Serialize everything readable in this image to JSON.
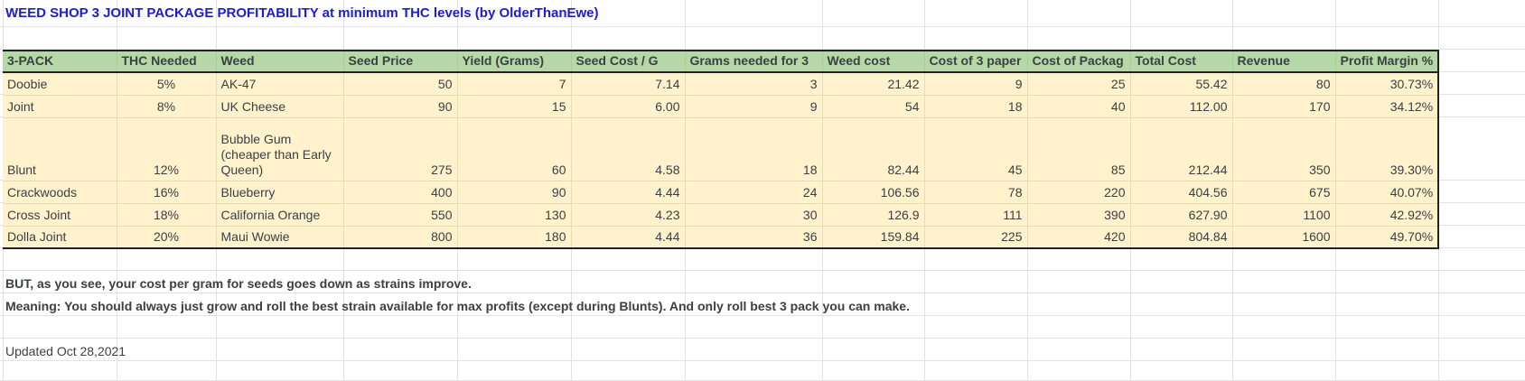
{
  "title": "WEED SHOP 3 JOINT PACKAGE PROFITABILITY at minimum THC levels  (by OlderThanEwe)",
  "colors": {
    "title": "#1c1cd4",
    "header_fill": "#b6d7a8",
    "row_fill": "#fff2cc"
  },
  "table": {
    "headers": [
      "3-PACK",
      "THC Needed",
      "Weed",
      "Seed Price",
      "Yield (Grams)",
      "Seed Cost / G",
      "Grams needed for 3",
      "Weed cost",
      "Cost of 3 paper",
      "Cost of Packag",
      "Total Cost",
      "Revenue",
      "Profit Margin %"
    ],
    "rows": [
      [
        "Doobie",
        "5%",
        "AK-47",
        "50",
        "7",
        "7.14",
        "3",
        "21.42",
        "9",
        "25",
        "55.42",
        "80",
        "30.73%"
      ],
      [
        "Joint",
        "8%",
        "UK Cheese",
        "90",
        "15",
        "6.00",
        "9",
        "54",
        "18",
        "40",
        "112.00",
        "170",
        "34.12%"
      ],
      [
        "Blunt",
        "12%",
        "Bubble Gum (cheaper than Early Queen)",
        "275",
        "60",
        "4.58",
        "18",
        "82.44",
        "45",
        "85",
        "212.44",
        "350",
        "39.30%"
      ],
      [
        "Crackwoods",
        "16%",
        "Blueberry",
        "400",
        "90",
        "4.44",
        "24",
        "106.56",
        "78",
        "220",
        "404.56",
        "675",
        "40.07%"
      ],
      [
        "Cross Joint",
        "18%",
        "California Orange",
        "550",
        "130",
        "4.23",
        "30",
        "126.9",
        "111",
        "390",
        "627.90",
        "1100",
        "42.92%"
      ],
      [
        "Dolla Joint",
        "20%",
        "Maui Wowie",
        "800",
        "180",
        "4.44",
        "36",
        "159.84",
        "225",
        "420",
        "804.84",
        "1600",
        "49.70%"
      ]
    ]
  },
  "notes": [
    "BUT, as you see, your cost per gram for seeds goes down as strains improve.",
    "Meaning: You should always just grow and roll the best strain available for max profits (except during Blunts). And only roll best 3 pack you can make."
  ],
  "updated": "Updated Oct 28,2021"
}
